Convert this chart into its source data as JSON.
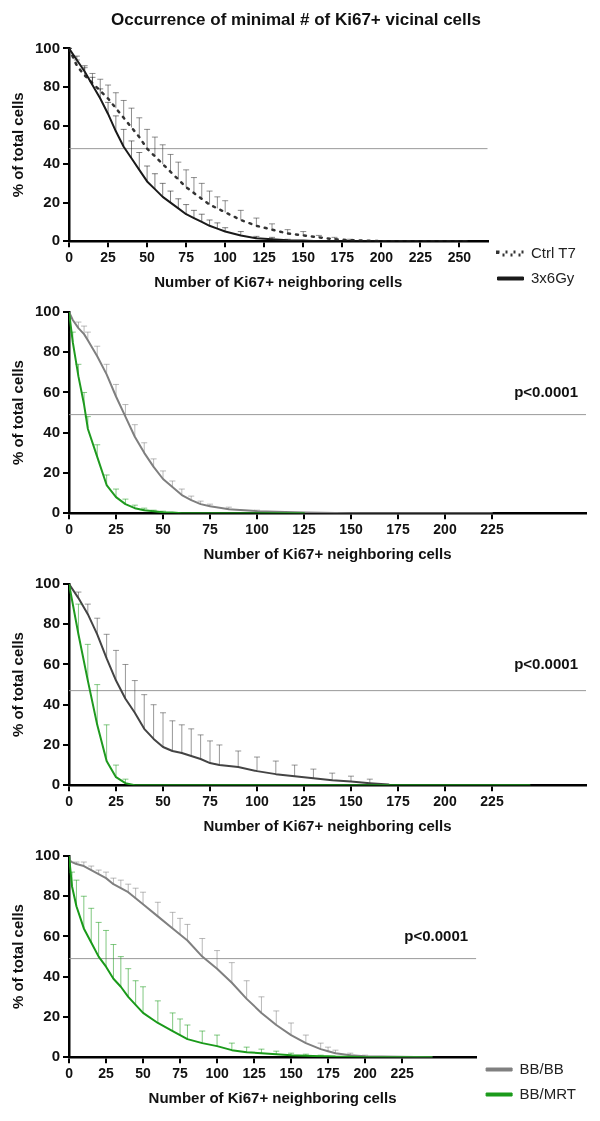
{
  "chart_data": [
    {
      "type": "line",
      "title": "Occurrence of minimal # of Ki67+ vicinal cells",
      "xlabel": "Number of Ki67+ neighboring cells",
      "ylabel": "% of total cells",
      "xlim": [
        0,
        268
      ],
      "xticks": [
        0,
        25,
        50,
        75,
        100,
        125,
        150,
        175,
        200,
        225,
        250
      ],
      "ylim": [
        0,
        100
      ],
      "yticks": [
        0,
        20,
        40,
        60,
        80,
        100
      ],
      "grid": false,
      "legend": "right",
      "marker": "none",
      "ref_lines": [
        {
          "axis": "y",
          "value": 48,
          "color": "#999999"
        }
      ],
      "x": [
        0,
        5,
        10,
        15,
        20,
        25,
        30,
        35,
        40,
        45,
        50,
        55,
        60,
        65,
        70,
        75,
        80,
        85,
        90,
        95,
        100,
        110,
        120,
        130,
        140,
        150,
        160,
        170,
        180,
        200,
        225,
        255
      ],
      "series": [
        {
          "name": "Ctrl T7",
          "color": "#333333",
          "line_style": "dotted",
          "values": [
            100,
            91,
            86,
            82,
            78,
            74,
            69,
            64,
            59,
            54,
            48,
            44,
            40,
            36,
            32,
            28,
            25,
            22,
            19,
            17,
            15,
            11,
            8,
            6,
            4,
            3,
            2,
            1,
            0.5,
            0,
            0,
            0
          ],
          "errors": [
            [
              100,
              100
            ],
            [
              91,
              94
            ],
            [
              86,
              90
            ],
            [
              82,
              87
            ],
            [
              78,
              84
            ],
            [
              74,
              81
            ],
            [
              69,
              77
            ],
            [
              64,
              73
            ],
            [
              59,
              69
            ],
            [
              54,
              64
            ],
            [
              48,
              58
            ],
            [
              44,
              54
            ],
            [
              40,
              50
            ],
            [
              36,
              45
            ],
            [
              32,
              41
            ],
            [
              28,
              37
            ],
            [
              25,
              33
            ],
            [
              22,
              30
            ],
            [
              19,
              26
            ],
            [
              17,
              23
            ],
            [
              15,
              21
            ],
            [
              11,
              16
            ],
            [
              8,
              12
            ],
            [
              6,
              9
            ],
            [
              4,
              6
            ],
            [
              3,
              5
            ],
            [
              2,
              3
            ],
            [
              1,
              2
            ],
            [
              0.5,
              1
            ],
            null,
            null,
            null
          ]
        },
        {
          "name": "3x6Gy",
          "color": "#1a1a1a",
          "line_style": "solid",
          "values": [
            100,
            94,
            88,
            81,
            74,
            66,
            57,
            49,
            43,
            37,
            31,
            27,
            23,
            20,
            17,
            14,
            12,
            10,
            8,
            6.5,
            5,
            3,
            1.5,
            1,
            0.5,
            0.3,
            0,
            0,
            0,
            0,
            0,
            0
          ],
          "errors": [
            [
              100,
              100
            ],
            [
              94,
              96
            ],
            [
              88,
              91
            ],
            [
              81,
              85
            ],
            [
              74,
              79
            ],
            [
              66,
              72
            ],
            [
              57,
              65
            ],
            [
              49,
              58
            ],
            [
              43,
              52
            ],
            [
              37,
              46
            ],
            [
              31,
              39
            ],
            [
              27,
              35
            ],
            [
              23,
              30
            ],
            [
              20,
              26
            ],
            [
              17,
              22
            ],
            [
              14,
              19
            ],
            [
              12,
              16
            ],
            [
              10,
              14
            ],
            [
              8,
              11
            ],
            [
              6.5,
              9.5
            ],
            [
              5,
              7
            ],
            [
              3,
              5
            ],
            [
              1.5,
              2.5
            ],
            [
              1,
              2
            ],
            [
              0.5,
              1
            ],
            null,
            null,
            null,
            null,
            null,
            null,
            null
          ]
        }
      ]
    },
    {
      "type": "line",
      "xlabel": "Number of Ki67+ neighboring cells",
      "ylabel": "% of total cells",
      "xlim": [
        0,
        275
      ],
      "xticks": [
        0,
        25,
        50,
        75,
        100,
        125,
        150,
        175,
        200,
        225
      ],
      "ylim": [
        0,
        100
      ],
      "yticks": [
        0,
        20,
        40,
        60,
        80,
        100
      ],
      "grid": false,
      "marker": "none",
      "annotations": [
        "p<0.0001"
      ],
      "ref_lines": [
        {
          "axis": "y",
          "value": 49,
          "color": "#999999"
        }
      ],
      "x": [
        0,
        2,
        5,
        8,
        10,
        15,
        20,
        25,
        30,
        35,
        40,
        45,
        50,
        55,
        60,
        65,
        70,
        75,
        85,
        100,
        125,
        150,
        225
      ],
      "series": [
        {
          "color": "#7f7f7f",
          "values": [
            100,
            96,
            92,
            89,
            86,
            78,
            69,
            58,
            48,
            38,
            30,
            23,
            17,
            13,
            9,
            6.5,
            4.5,
            3.5,
            2,
            1,
            0.3,
            0,
            0
          ],
          "errors": [
            null,
            null,
            [
              92,
              95
            ],
            [
              89,
              93
            ],
            [
              86,
              90
            ],
            [
              78,
              83
            ],
            [
              69,
              74
            ],
            [
              58,
              64
            ],
            [
              48,
              54
            ],
            [
              38,
              44
            ],
            [
              30,
              35
            ],
            [
              23,
              27
            ],
            [
              17,
              21
            ],
            [
              13,
              16
            ],
            [
              9,
              12
            ],
            [
              6.5,
              8.5
            ],
            [
              4.5,
              6
            ],
            [
              3.5,
              4.5
            ],
            [
              2,
              3
            ],
            [
              1,
              1.5
            ],
            null,
            null,
            null
          ]
        },
        {
          "color": "#1f9a1f",
          "values": [
            100,
            85,
            68,
            54,
            42,
            28,
            14,
            8,
            4.5,
            2.5,
            1.5,
            1,
            0.5,
            0.3,
            0,
            0,
            0,
            0,
            0,
            0,
            0,
            null,
            null
          ],
          "errors": [
            null,
            [
              85,
              90
            ],
            [
              68,
              74
            ],
            [
              54,
              60
            ],
            [
              42,
              48
            ],
            [
              28,
              34
            ],
            [
              14,
              19
            ],
            [
              8,
              12
            ],
            [
              4.5,
              7
            ],
            [
              2.5,
              4
            ],
            [
              1.5,
              2.5
            ],
            [
              1,
              1.5
            ],
            [
              0.5,
              1
            ],
            null,
            null,
            null,
            null,
            null,
            null,
            null,
            null,
            null,
            null
          ]
        }
      ]
    },
    {
      "type": "line",
      "xlabel": "Number of Ki67+ neighboring cells",
      "ylabel": "% of total cells",
      "xlim": [
        0,
        275
      ],
      "xticks": [
        0,
        25,
        50,
        75,
        100,
        125,
        150,
        175,
        200,
        225
      ],
      "ylim": [
        0,
        100
      ],
      "yticks": [
        0,
        20,
        40,
        60,
        80,
        100
      ],
      "grid": false,
      "marker": "none",
      "annotations": [
        "p<0.0001"
      ],
      "ref_lines": [
        {
          "axis": "y",
          "value": 47,
          "color": "#999999"
        }
      ],
      "x": [
        0,
        5,
        10,
        15,
        20,
        25,
        30,
        35,
        40,
        45,
        50,
        55,
        60,
        65,
        70,
        75,
        80,
        90,
        100,
        110,
        120,
        130,
        140,
        150,
        160,
        170,
        175,
        200,
        245
      ],
      "series": [
        {
          "color": "#444444",
          "values": [
            100,
            93,
            85,
            75,
            63,
            52,
            43,
            36,
            28,
            23,
            19,
            17,
            16,
            14.5,
            13,
            11,
            10,
            9,
            7,
            5.5,
            4.5,
            3.5,
            2.5,
            1.8,
            1,
            0.3,
            null,
            null,
            null
          ],
          "errors": [
            null,
            [
              93,
              96
            ],
            [
              85,
              90
            ],
            [
              75,
              83
            ],
            [
              63,
              75
            ],
            [
              52,
              67
            ],
            [
              43,
              60
            ],
            [
              36,
              52
            ],
            [
              28,
              45
            ],
            [
              23,
              40
            ],
            [
              19,
              36
            ],
            [
              17,
              32
            ],
            [
              16,
              30
            ],
            [
              14.5,
              28
            ],
            [
              13,
              25
            ],
            [
              11,
              22
            ],
            [
              10,
              20
            ],
            [
              9,
              17
            ],
            [
              7,
              14
            ],
            [
              5.5,
              12
            ],
            [
              4.5,
              10
            ],
            [
              3.5,
              8
            ],
            [
              2.5,
              6
            ],
            [
              1.8,
              4.5
            ],
            [
              1,
              3
            ],
            null,
            null,
            null,
            null
          ]
        },
        {
          "color": "#1f9a1f",
          "values": [
            100,
            75,
            52,
            30,
            12,
            4,
            1,
            0,
            0,
            0,
            0,
            0,
            0,
            0,
            0,
            0,
            0,
            0,
            0,
            0,
            0,
            0,
            0,
            0,
            0,
            0,
            0,
            0,
            0
          ],
          "errors": [
            null,
            [
              75,
              90
            ],
            [
              52,
              70
            ],
            [
              30,
              50
            ],
            [
              12,
              30
            ],
            [
              4,
              10
            ],
            [
              1,
              3
            ],
            null,
            null,
            null,
            null,
            null,
            null,
            null,
            null,
            null,
            null,
            null,
            null,
            null,
            null,
            null,
            null,
            null,
            null,
            null,
            null,
            null,
            null
          ]
        }
      ]
    },
    {
      "type": "line",
      "xlabel": "Number of Ki67+ neighboring cells",
      "ylabel": "% of total cells",
      "xlim": [
        0,
        275
      ],
      "xticks": [
        0,
        25,
        50,
        75,
        100,
        125,
        150,
        175,
        200,
        225
      ],
      "ylim": [
        0,
        100
      ],
      "yticks": [
        0,
        20,
        40,
        60,
        80,
        100
      ],
      "grid": false,
      "legend": "right",
      "marker": "none",
      "annotations": [
        "p<0.0001"
      ],
      "ref_lines": [
        {
          "axis": "y",
          "value": 49,
          "color": "#999999"
        }
      ],
      "x": [
        0,
        2,
        5,
        10,
        15,
        20,
        25,
        30,
        35,
        40,
        45,
        50,
        60,
        70,
        75,
        80,
        90,
        100,
        110,
        120,
        130,
        140,
        150,
        160,
        170,
        175,
        180,
        190,
        200,
        245
      ],
      "series": [
        {
          "name": "BB/BB",
          "color": "#808080",
          "values": [
            98,
            97,
            96,
            95,
            93,
            91,
            89,
            86,
            84,
            82,
            79,
            76,
            70,
            64,
            61,
            58,
            50,
            44,
            37,
            29,
            22,
            16,
            11,
            7,
            4,
            3,
            2,
            1,
            0.5,
            0
          ],
          "errors": [
            null,
            null,
            [
              96,
              97
            ],
            [
              95,
              97
            ],
            [
              93,
              95
            ],
            [
              91,
              93
            ],
            [
              89,
              92
            ],
            [
              86,
              89
            ],
            [
              84,
              88
            ],
            [
              82,
              86
            ],
            [
              79,
              84
            ],
            [
              76,
              82
            ],
            [
              70,
              77
            ],
            [
              64,
              72
            ],
            [
              61,
              69
            ],
            [
              58,
              66
            ],
            [
              50,
              59
            ],
            [
              44,
              53
            ],
            [
              37,
              47
            ],
            [
              29,
              38
            ],
            [
              22,
              30
            ],
            [
              16,
              23
            ],
            [
              11,
              17
            ],
            [
              7,
              11
            ],
            [
              4,
              7
            ],
            [
              3,
              5
            ],
            [
              2,
              3.5
            ],
            [
              1,
              2
            ],
            [
              0.5,
              1
            ],
            null
          ]
        },
        {
          "name": "BB/MRT",
          "color": "#1a9a1a",
          "values": [
            100,
            85,
            75,
            64,
            57,
            50,
            45,
            39,
            35,
            30,
            26,
            22,
            17,
            13,
            11,
            9,
            7,
            5.5,
            3.5,
            2.5,
            2,
            1.5,
            1,
            0.7,
            0.5,
            0.5,
            0.3,
            0.2,
            0,
            0
          ],
          "errors": [
            null,
            [
              85,
              92
            ],
            [
              75,
              88
            ],
            [
              64,
              80
            ],
            [
              57,
              74
            ],
            [
              50,
              67
            ],
            [
              45,
              63
            ],
            [
              39,
              56
            ],
            [
              35,
              50
            ],
            [
              30,
              44
            ],
            [
              26,
              38
            ],
            [
              22,
              35
            ],
            [
              17,
              28
            ],
            [
              13,
              22
            ],
            [
              11,
              19
            ],
            [
              9,
              16
            ],
            [
              7,
              13
            ],
            [
              5.5,
              11
            ],
            [
              3.5,
              7
            ],
            [
              2.5,
              5
            ],
            [
              2,
              4
            ],
            [
              1.5,
              3
            ],
            [
              1,
              2
            ],
            [
              0.7,
              1.5
            ],
            [
              0.5,
              1
            ],
            null,
            null,
            null,
            null,
            null
          ]
        }
      ]
    }
  ]
}
